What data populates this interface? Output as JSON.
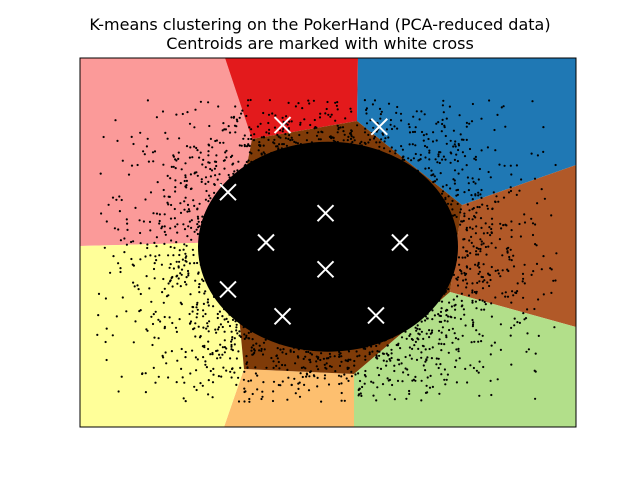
{
  "chart_data": {
    "type": "scatter",
    "title": "K-means clustering on the PokerHand (PCA-reduced data)",
    "subtitle": "Centroids are marked with white cross",
    "xlabel": "",
    "ylabel": "",
    "x_ticks": [],
    "y_ticks": [],
    "xlim": [
      -3.0,
      3.0
    ],
    "ylim": [
      -2.2,
      2.2
    ],
    "grid": false,
    "legend": "none",
    "region_colors": [
      "#fb9a99",
      "#e31a1c",
      "#1f78b4",
      "#b15928",
      "#b2df8a",
      "#fdbf6f",
      "#ffff99"
    ],
    "point_color": "#000000",
    "centroid_color": "#ffffff",
    "centroids": [
      {
        "x": -0.55,
        "y": 1.4
      },
      {
        "x": 0.62,
        "y": 1.38
      },
      {
        "x": -1.21,
        "y": 0.6
      },
      {
        "x": -0.03,
        "y": 0.35
      },
      {
        "x": -0.75,
        "y": 0.0
      },
      {
        "x": 0.87,
        "y": 0.0
      },
      {
        "x": -0.03,
        "y": -0.32
      },
      {
        "x": -1.21,
        "y": -0.56
      },
      {
        "x": -0.55,
        "y": -0.88
      },
      {
        "x": 0.58,
        "y": -0.87
      }
    ],
    "scatter_extent": {
      "x": [
        -2.8,
        2.8
      ],
      "y": [
        -1.9,
        1.7
      ]
    }
  }
}
